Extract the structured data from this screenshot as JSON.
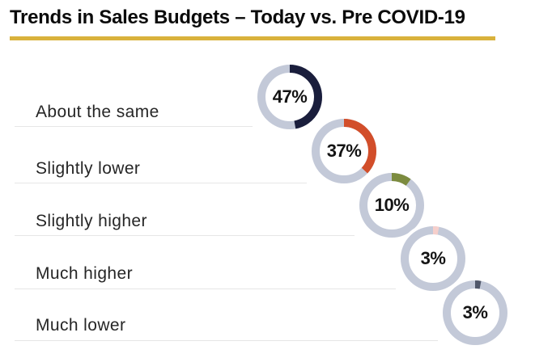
{
  "title": "Trends in Sales Budgets – Today vs. Pre COVID-19",
  "accent_color": "#d9b23c",
  "chart_data": {
    "type": "pie",
    "subtype": "donut-per-category",
    "title": "Trends in Sales Budgets – Today vs. Pre COVID-19",
    "categories": [
      "About the same",
      "Slightly lower",
      "Slightly higher",
      "Much higher",
      "Much lower"
    ],
    "values": [
      47,
      37,
      10,
      3,
      3
    ],
    "value_labels": [
      "47%",
      "37%",
      "10%",
      "3%",
      "3%"
    ],
    "segment_colors": [
      "#1a1e3c",
      "#d24e2a",
      "#7c8b3f",
      "#f6cfcb",
      "#4f5669"
    ],
    "track_color": "#c3c9d8",
    "start_angle_deg": 0,
    "direction": "clockwise",
    "legend_position": "none",
    "grid": false,
    "layout_note": "one donut per row, donuts descend diagonally to the right; each row label has a light divider line"
  }
}
